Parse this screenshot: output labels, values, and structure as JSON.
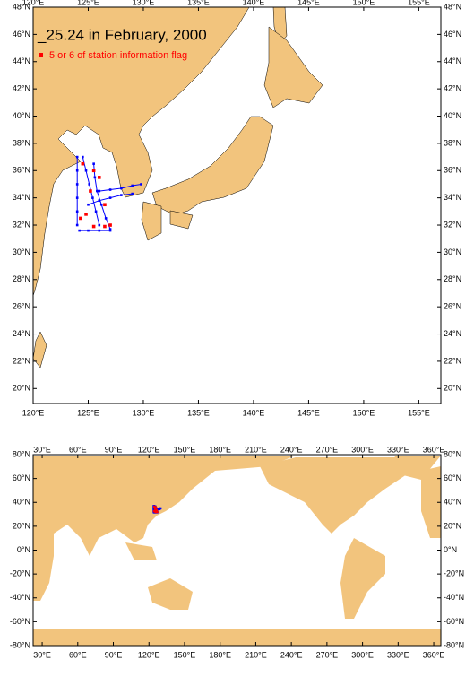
{
  "chart_data": [
    {
      "type": "map",
      "title": "_25.24 in February, 2000",
      "xlim": [
        120,
        157
      ],
      "ylim": [
        18.9,
        48
      ],
      "xticks": [
        {
          "value": 120,
          "label": "120°E"
        },
        {
          "value": 125,
          "label": "125°E"
        },
        {
          "value": 130,
          "label": "130°E"
        },
        {
          "value": 135,
          "label": "135°E"
        },
        {
          "value": 140,
          "label": "140°E"
        },
        {
          "value": 145,
          "label": "145°E"
        },
        {
          "value": 150,
          "label": "150°E"
        },
        {
          "value": 155,
          "label": "155°E"
        }
      ],
      "yticks": [
        {
          "value": 20,
          "label": "20°N"
        },
        {
          "value": 22,
          "label": "22°N"
        },
        {
          "value": 24,
          "label": "24°N"
        },
        {
          "value": 26,
          "label": "26°N"
        },
        {
          "value": 28,
          "label": "28°N"
        },
        {
          "value": 30,
          "label": "30°N"
        },
        {
          "value": 32,
          "label": "32°N"
        },
        {
          "value": 34,
          "label": "34°N"
        },
        {
          "value": 36,
          "label": "36°N"
        },
        {
          "value": 38,
          "label": "38°N"
        },
        {
          "value": 40,
          "label": "40°N"
        },
        {
          "value": 42,
          "label": "42°N"
        },
        {
          "value": 44,
          "label": "44°N"
        },
        {
          "value": 46,
          "label": "46°N"
        },
        {
          "value": 48,
          "label": "48°N"
        }
      ],
      "series": [
        {
          "color": "#0000ff",
          "x": [
            124.0,
            124.0,
            124.0,
            124.0,
            124.0,
            124.0,
            null,
            124.5,
            124.8,
            125.1,
            125.4,
            125.7,
            126.0,
            null,
            125.5,
            125.6,
            125.8,
            126.2,
            126.6,
            127.0,
            null,
            126.0,
            127.0,
            128.0,
            129.0,
            129.8,
            null,
            125.0,
            126.0,
            127.0,
            128.0,
            129.0,
            null,
            124.2,
            125.0,
            126.0,
            127.0
          ],
          "y": [
            37.0,
            36.0,
            35.0,
            34.0,
            33.0,
            32.0,
            null,
            37.0,
            36.0,
            35.0,
            34.0,
            33.0,
            32.0,
            null,
            36.5,
            35.5,
            34.5,
            33.5,
            32.5,
            31.7,
            null,
            34.5,
            34.6,
            34.7,
            34.9,
            35.0,
            null,
            33.5,
            33.8,
            34.0,
            34.2,
            34.3,
            null,
            31.6,
            31.6,
            31.6,
            31.6
          ]
        },
        {
          "name": "5 or 6 of station information flag",
          "color": "#ff0000",
          "x": [
            124.5,
            125.5,
            126.0,
            125.2,
            126.5,
            124.8,
            126.5,
            127.0,
            125.5,
            124.3
          ],
          "y": [
            36.5,
            36.0,
            35.5,
            34.5,
            33.5,
            32.8,
            31.9,
            32.0,
            31.9,
            32.5
          ]
        }
      ]
    },
    {
      "type": "map",
      "xlim": [
        22.4,
        366
      ],
      "ylim": [
        -80,
        80
      ],
      "xticks": [
        {
          "value": 30,
          "label": "30°E"
        },
        {
          "value": 60,
          "label": "60°E"
        },
        {
          "value": 90,
          "label": "90°E"
        },
        {
          "value": 120,
          "label": "120°E"
        },
        {
          "value": 150,
          "label": "150°E"
        },
        {
          "value": 180,
          "label": "180°E"
        },
        {
          "value": 210,
          "label": "210°E"
        },
        {
          "value": 240,
          "label": "240°E"
        },
        {
          "value": 270,
          "label": "270°E"
        },
        {
          "value": 300,
          "label": "300°E"
        },
        {
          "value": 330,
          "label": "330°E"
        },
        {
          "value": 360,
          "label": "360°E"
        }
      ],
      "yticks": [
        {
          "value": -80,
          "label": "-80°N"
        },
        {
          "value": -60,
          "label": "-60°N"
        },
        {
          "value": -40,
          "label": "-40°N"
        },
        {
          "value": -20,
          "label": "-20°N"
        },
        {
          "value": 0,
          "label": "0°N"
        },
        {
          "value": 20,
          "label": "20°N"
        },
        {
          "value": 40,
          "label": "40°N"
        },
        {
          "value": 60,
          "label": "60°N"
        },
        {
          "value": 80,
          "label": "80°N"
        }
      ]
    }
  ]
}
